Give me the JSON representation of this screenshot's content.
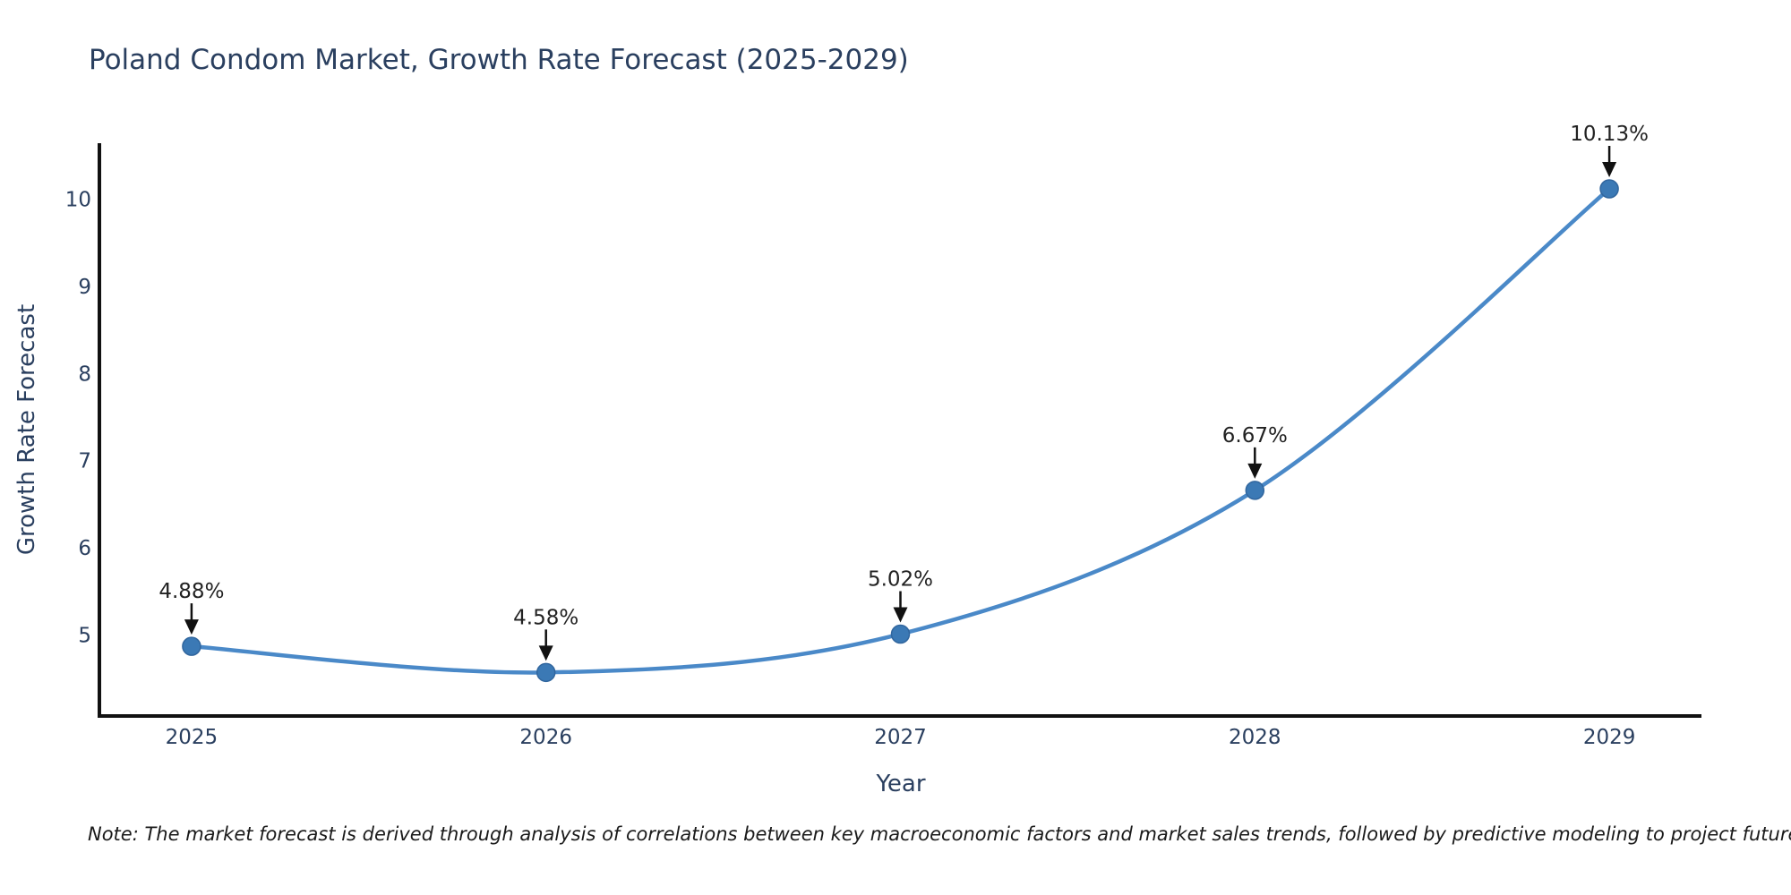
{
  "header": {
    "title": "Poland Condom Market, Growth Rate Forecast (2025-2029)"
  },
  "footer": {
    "note": "Note: The market forecast is derived through analysis of correlations between key macroeconomic factors and market sales trends, followed by predictive modeling to project future sales."
  },
  "chart_data": {
    "type": "line",
    "line_shape": "spline",
    "title": "Poland Condom Market, Growth Rate Forecast (2025-2029)",
    "xlabel": "Year",
    "ylabel": "Growth Rate Forecast",
    "categories": [
      "2025",
      "2026",
      "2027",
      "2028",
      "2029"
    ],
    "x": [
      2025,
      2026,
      2027,
      2028,
      2029
    ],
    "values": [
      4.88,
      4.58,
      5.02,
      6.67,
      10.13
    ],
    "point_labels": [
      "4.88%",
      "4.58%",
      "5.02%",
      "6.67%",
      "10.13%"
    ],
    "yticks": [
      5,
      6,
      7,
      8,
      9,
      10
    ],
    "xlim": [
      2024.74,
      2029.26
    ],
    "ylim": [
      4.08,
      10.654
    ],
    "grid": false,
    "legend": "none",
    "annotations_style": "label-with-down-arrow",
    "colors": {
      "line": "#4a89c8",
      "marker_fill": "#3b79b5",
      "marker_edge": "#31669e",
      "axis_line": "#111111",
      "axis_text": "#2a3f5f",
      "annotation_text": "#222222",
      "arrow": "#111111",
      "title_text": "#2a3f5f",
      "background": "#ffffff"
    }
  }
}
